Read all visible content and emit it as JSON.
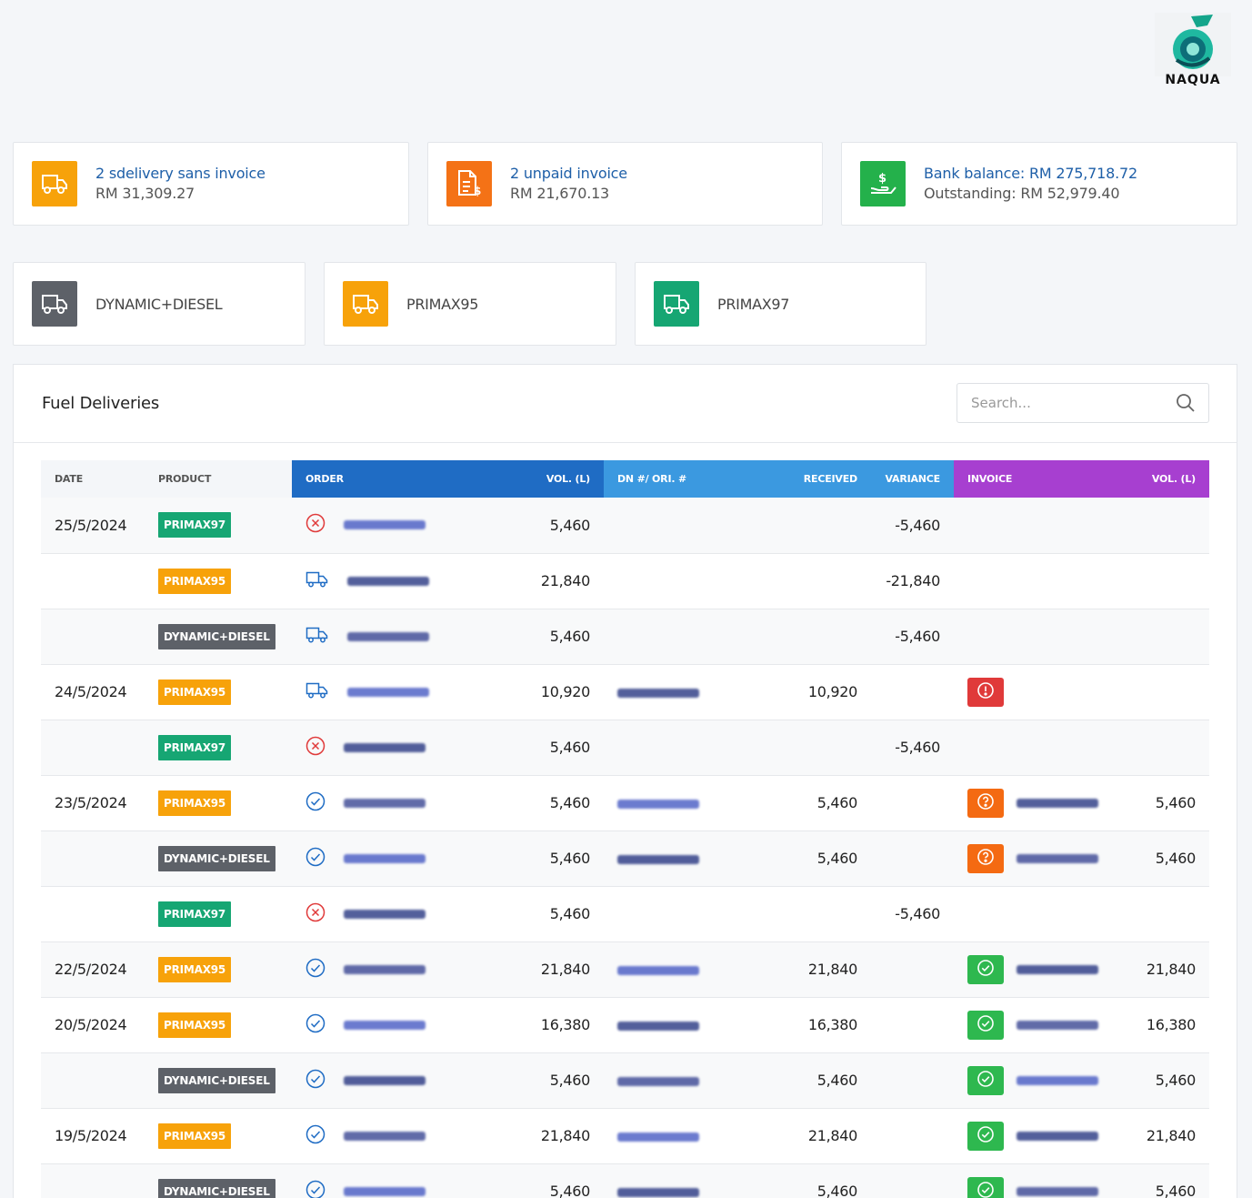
{
  "logo": {
    "text": "NAQUA"
  },
  "summary_cards": [
    {
      "icon": "truck-icon",
      "line1": "2 sdelivery sans invoice",
      "line2": "RM 31,309.27"
    },
    {
      "icon": "invoice-dollar-icon",
      "line1": "2 unpaid invoice",
      "line2": "RM 21,670.13"
    },
    {
      "icon": "hand-money-icon",
      "line1": "Bank balance: RM 275,718.72",
      "line2": "Outstanding: RM 52,979.40"
    }
  ],
  "product_cards": [
    {
      "icon": "truck-icon",
      "label": "DYNAMIC+DIESEL"
    },
    {
      "icon": "truck-icon",
      "label": "PRIMAX95"
    },
    {
      "icon": "truck-icon",
      "label": "PRIMAX97"
    }
  ],
  "panel": {
    "title": "Fuel Deliveries",
    "search_placeholder": "Search..."
  },
  "columns": {
    "date": "DATE",
    "product": "PRODUCT",
    "order": "ORDER",
    "vol1": "VOL. (L)",
    "dn": "DN #/ ORI. #",
    "received": "RECEIVED",
    "variance": "VARIANCE",
    "invoice": "INVOICE",
    "vol2": "VOL. (L)"
  },
  "colors": {
    "PRIMAX97": "#16a673",
    "PRIMAX95": "#f7a20a",
    "DYNAMIC+DIESEL": "#5d6168",
    "order_blue": "#1f6cc4",
    "dn_blue": "#3b99e0",
    "invoice_purple": "#a73fd0",
    "status_red": "#e03a3a",
    "status_orange": "#f46a12",
    "status_green": "#2eb84f"
  },
  "rows": [
    {
      "date": "25/5/2024",
      "product": "PRIMAX97",
      "order_icon": "cancel-icon",
      "vol": "5,460",
      "received": "",
      "variance": "-5,460",
      "invoice_status": "",
      "vol2": ""
    },
    {
      "date": "",
      "product": "PRIMAX95",
      "order_icon": "truck-icon",
      "vol": "21,840",
      "received": "",
      "variance": "-21,840",
      "invoice_status": "",
      "vol2": ""
    },
    {
      "date": "",
      "product": "DYNAMIC+DIESEL",
      "order_icon": "truck-icon",
      "vol": "5,460",
      "received": "",
      "variance": "-5,460",
      "invoice_status": "",
      "vol2": ""
    },
    {
      "date": "24/5/2024",
      "product": "PRIMAX95",
      "order_icon": "truck-icon",
      "vol": "10,920",
      "received": "10,920",
      "variance": "",
      "invoice_status": "error",
      "vol2": ""
    },
    {
      "date": "",
      "product": "PRIMAX97",
      "order_icon": "cancel-icon",
      "vol": "5,460",
      "received": "",
      "variance": "-5,460",
      "invoice_status": "",
      "vol2": ""
    },
    {
      "date": "23/5/2024",
      "product": "PRIMAX95",
      "order_icon": "check-icon",
      "vol": "5,460",
      "received": "5,460",
      "variance": "",
      "invoice_status": "question",
      "vol2": "5,460"
    },
    {
      "date": "",
      "product": "DYNAMIC+DIESEL",
      "order_icon": "check-icon",
      "vol": "5,460",
      "received": "5,460",
      "variance": "",
      "invoice_status": "question",
      "vol2": "5,460"
    },
    {
      "date": "",
      "product": "PRIMAX97",
      "order_icon": "cancel-icon",
      "vol": "5,460",
      "received": "",
      "variance": "-5,460",
      "invoice_status": "",
      "vol2": ""
    },
    {
      "date": "22/5/2024",
      "product": "PRIMAX95",
      "order_icon": "check-icon",
      "vol": "21,840",
      "received": "21,840",
      "variance": "",
      "invoice_status": "ok",
      "vol2": "21,840"
    },
    {
      "date": "20/5/2024",
      "product": "PRIMAX95",
      "order_icon": "check-icon",
      "vol": "16,380",
      "received": "16,380",
      "variance": "",
      "invoice_status": "ok",
      "vol2": "16,380"
    },
    {
      "date": "",
      "product": "DYNAMIC+DIESEL",
      "order_icon": "check-icon",
      "vol": "5,460",
      "received": "5,460",
      "variance": "",
      "invoice_status": "ok",
      "vol2": "5,460"
    },
    {
      "date": "19/5/2024",
      "product": "PRIMAX95",
      "order_icon": "check-icon",
      "vol": "21,840",
      "received": "21,840",
      "variance": "",
      "invoice_status": "ok",
      "vol2": "21,840"
    },
    {
      "date": "",
      "product": "DYNAMIC+DIESEL",
      "order_icon": "check-icon",
      "vol": "5,460",
      "received": "5,460",
      "variance": "",
      "invoice_status": "ok",
      "vol2": "5,460"
    }
  ]
}
